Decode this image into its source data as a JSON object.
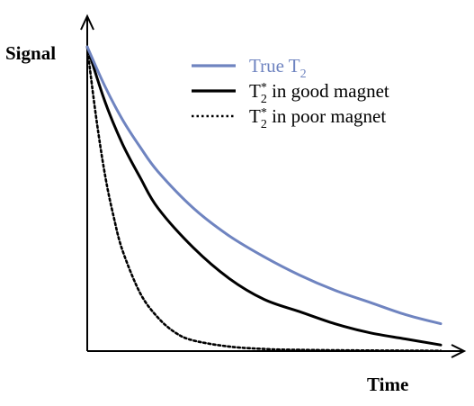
{
  "chart_data": {
    "type": "line",
    "xlabel": "Time",
    "ylabel": "Signal",
    "xlim": [
      0,
      1
    ],
    "ylim": [
      0,
      1
    ],
    "ticks": "none",
    "grid": false,
    "legend_placement": "top-right",
    "series": [
      {
        "name": "True T2",
        "legend": {
          "main": "True T",
          "sub": "2",
          "sup": "",
          "tail": ""
        },
        "color": "#6f84c0",
        "line_style": "solid",
        "x": [
          0,
          0.05,
          0.1,
          0.15,
          0.2,
          0.3,
          0.4,
          0.5,
          0.6,
          0.7,
          0.8,
          0.9,
          1.0
        ],
        "y": [
          1.0,
          0.87,
          0.76,
          0.67,
          0.59,
          0.47,
          0.38,
          0.31,
          0.25,
          0.2,
          0.16,
          0.12,
          0.09
        ]
      },
      {
        "name": "T2* in good magnet",
        "legend": {
          "main": "T",
          "sub": "2",
          "sup": "*",
          "tail": " in good magnet"
        },
        "color": "#000000",
        "line_style": "solid",
        "x": [
          0,
          0.05,
          0.1,
          0.15,
          0.2,
          0.3,
          0.4,
          0.5,
          0.6,
          0.7,
          0.8,
          0.9,
          1.0
        ],
        "y": [
          1.0,
          0.82,
          0.68,
          0.57,
          0.47,
          0.34,
          0.24,
          0.17,
          0.13,
          0.09,
          0.06,
          0.04,
          0.02
        ]
      },
      {
        "name": "T2* in poor magnet",
        "legend": {
          "main": "T",
          "sub": "2",
          "sup": "*",
          "tail": " in poor magnet"
        },
        "color": "#000000",
        "line_style": "dotted",
        "x": [
          0,
          0.025,
          0.05,
          0.075,
          0.1,
          0.15,
          0.2,
          0.25,
          0.3,
          0.4,
          0.5,
          0.6,
          0.8,
          1.0
        ],
        "y": [
          1.0,
          0.77,
          0.58,
          0.44,
          0.33,
          0.19,
          0.11,
          0.06,
          0.035,
          0.015,
          0.007,
          0.004,
          0.002,
          0.001
        ]
      }
    ]
  }
}
